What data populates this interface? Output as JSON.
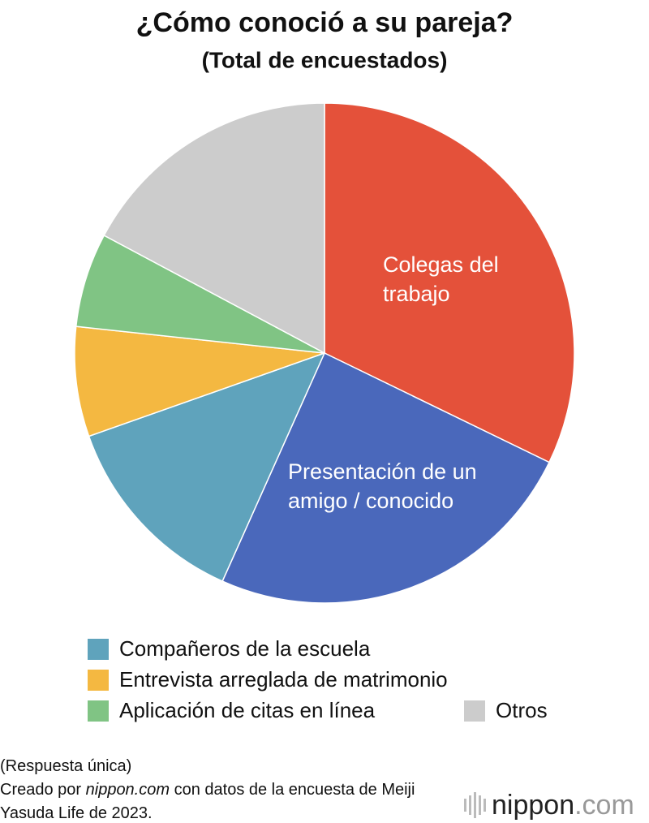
{
  "chart_data": {
    "type": "pie",
    "title": "¿Cómo conoció a su pareja?",
    "subtitle": "(Total de encuestados)",
    "categories": [
      "Colegas del trabajo",
      "Presentación de un amigo / conocido",
      "Compañeros de la escuela",
      "Entrevista arreglada de matrimonio",
      "Aplicación de citas en línea",
      "Otros"
    ],
    "values": [
      32.2,
      24.5,
      12.9,
      7.1,
      6.1,
      17.2
    ],
    "colors": [
      "#e4513a",
      "#4a68bb",
      "#5fa3bc",
      "#f4b841",
      "#80c484",
      "#cccccc"
    ],
    "label_position": [
      "inside",
      "inside",
      "legend",
      "legend",
      "legend",
      "legend"
    ]
  },
  "footer": {
    "note": "(Respuesta única)",
    "source": [
      "Creado por ",
      "nippon.com",
      " con datos de la encuesta de Meiji Yasuda Life de 2023."
    ],
    "logo": [
      "nippon",
      ".com"
    ]
  }
}
